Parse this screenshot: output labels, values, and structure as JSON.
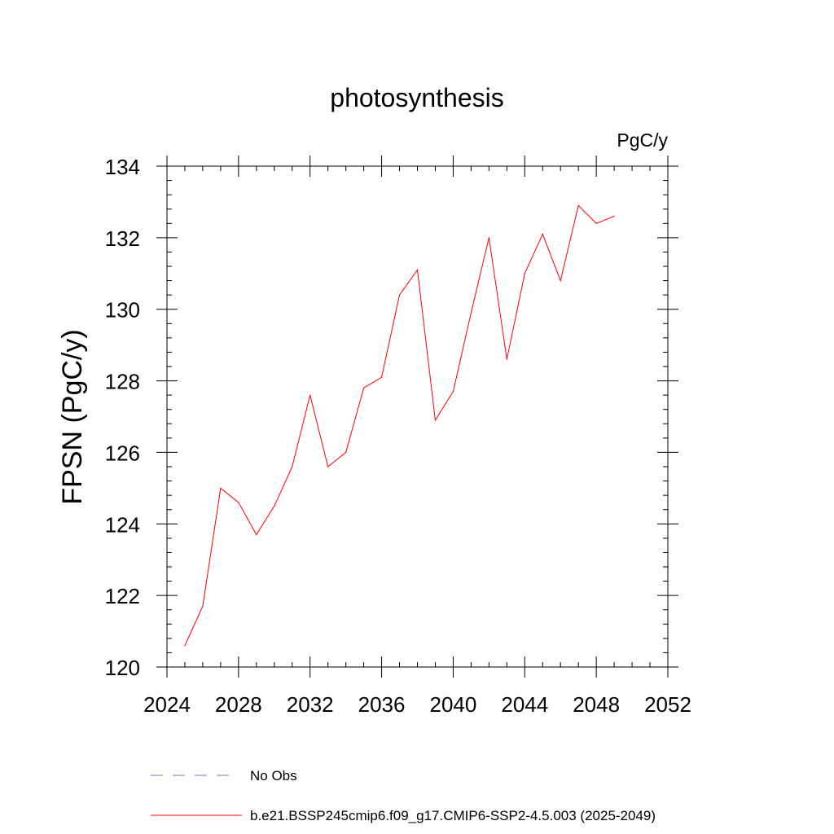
{
  "chart_data": {
    "type": "line",
    "title": "photosynthesis",
    "units_label": "PgC/y",
    "ylabel": "FPSN  (PgC/y)",
    "xlabel": "",
    "xlim": [
      2024,
      2052
    ],
    "ylim": [
      120,
      134
    ],
    "x_ticks": [
      2024,
      2028,
      2032,
      2036,
      2040,
      2044,
      2048,
      2052
    ],
    "y_ticks": [
      120,
      122,
      124,
      126,
      128,
      130,
      132,
      134
    ],
    "grid": false,
    "legend_position": "bottom",
    "series": [
      {
        "name": "b.e21.BSSP245cmip6.f09_g17.CMIP6-SSP2-4.5.003 (2025-2049)",
        "color": "#ff0000",
        "style": "solid",
        "x": [
          2025,
          2026,
          2027,
          2028,
          2029,
          2030,
          2031,
          2032,
          2033,
          2034,
          2035,
          2036,
          2037,
          2038,
          2039,
          2040,
          2041,
          2042,
          2043,
          2044,
          2045,
          2046,
          2047,
          2048,
          2049
        ],
        "y": [
          120.6,
          121.7,
          125.0,
          124.6,
          123.7,
          124.5,
          125.6,
          127.6,
          125.6,
          126.0,
          127.8,
          128.1,
          130.4,
          131.1,
          126.9,
          127.7,
          129.9,
          132.0,
          128.6,
          131.0,
          132.1,
          130.8,
          132.9,
          132.4,
          132.6
        ]
      }
    ],
    "legend": [
      {
        "label": "No Obs",
        "color": "#7777bb",
        "style": "dashed"
      },
      {
        "label": "b.e21.BSSP245cmip6.f09_g17.CMIP6-SSP2-4.5.003 (2025-2049)",
        "color": "#ff0000",
        "style": "solid"
      }
    ]
  }
}
